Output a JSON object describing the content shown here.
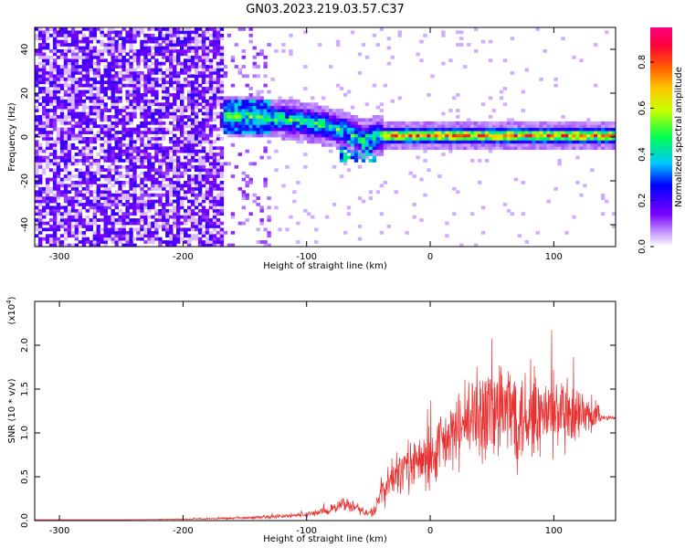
{
  "title": "GN03.2023.219.03.57.C37",
  "chart_data": [
    {
      "type": "heatmap",
      "xlabel": "Height of straight line (km)",
      "ylabel": "Frequency (Hz)",
      "xlim": [
        -320,
        150
      ],
      "ylim": [
        -50,
        50
      ],
      "xticks": [
        -300,
        -200,
        -100,
        0,
        100
      ],
      "yticks": [
        -40,
        -20,
        0,
        20,
        40
      ],
      "colorbar": {
        "label": "Normalized spectral amplitude",
        "range": [
          0,
          0.95
        ],
        "ticks": [
          0.0,
          0.2,
          0.4,
          0.6,
          0.8
        ]
      },
      "trace": {
        "description_points": [
          [
            -165,
            9
          ],
          [
            -130,
            8
          ],
          [
            -110,
            7
          ],
          [
            -90,
            5
          ],
          [
            -70,
            2
          ],
          [
            -55,
            -2
          ],
          [
            -45,
            0
          ],
          [
            -30,
            0
          ],
          [
            0,
            0
          ],
          [
            50,
            0
          ],
          [
            100,
            0
          ],
          [
            150,
            0
          ]
        ]
      }
    },
    {
      "type": "line",
      "xlabel": "Height of straight line (km)",
      "ylabel": "SNR (10 * v/v)",
      "yscale_label": "(x10",
      "yscale_exp": "4",
      "yscale_close": ")",
      "xlim": [
        -320,
        150
      ],
      "ylim": [
        0,
        2.5
      ],
      "xticks": [
        -300,
        -200,
        -100,
        0,
        100
      ],
      "yticks": [
        0.0,
        0.5,
        1.0,
        1.5,
        2.0
      ],
      "line_color": "#e83030",
      "series": [
        {
          "x": [
            -320,
            -250,
            -180,
            -150,
            -120,
            -100,
            -80,
            -70,
            -60,
            -50,
            -45,
            -40,
            -30,
            -20,
            -10,
            0,
            10,
            20,
            30,
            40,
            50,
            60,
            70,
            80,
            90,
            100,
            110,
            120,
            130,
            140,
            150
          ],
          "mean": [
            0.01,
            0.01,
            0.02,
            0.03,
            0.05,
            0.07,
            0.12,
            0.2,
            0.15,
            0.08,
            0.1,
            0.3,
            0.5,
            0.6,
            0.65,
            0.7,
            0.85,
            1.0,
            1.1,
            1.2,
            1.25,
            1.25,
            1.25,
            1.2,
            1.2,
            1.2,
            1.15,
            1.15,
            1.2,
            1.18,
            1.17
          ],
          "amp": [
            0.0,
            0.0,
            0.01,
            0.02,
            0.03,
            0.04,
            0.06,
            0.1,
            0.08,
            0.05,
            0.1,
            0.2,
            0.3,
            0.35,
            0.4,
            0.45,
            0.5,
            0.5,
            0.6,
            0.7,
            0.8,
            0.8,
            0.8,
            0.7,
            0.6,
            0.6,
            0.55,
            0.45,
            0.35,
            0.05,
            0.02
          ]
        }
      ]
    }
  ]
}
